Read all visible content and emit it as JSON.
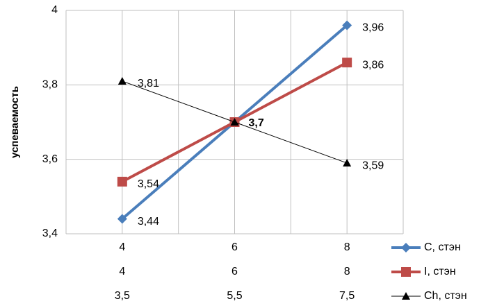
{
  "chart_data": {
    "type": "line",
    "y_label": "успеваемость",
    "categories": [
      [
        "4",
        "4",
        "3,5"
      ],
      [
        "6",
        "6",
        "5,5"
      ],
      [
        "8",
        "8",
        "7,5"
      ]
    ],
    "ylim": [
      3.4,
      4
    ],
    "yticks": [
      {
        "value": 3.4,
        "label": "3,4"
      },
      {
        "value": 3.6,
        "label": "3,6"
      },
      {
        "value": 3.8,
        "label": "3,8"
      },
      4
    ],
    "grid": true,
    "legend": "bottom-right",
    "series": [
      {
        "name": "C, стэн",
        "color": "#4a7ebb",
        "marker": "diamond",
        "line_width": 4,
        "values": [
          3.44,
          3.7,
          3.96
        ],
        "value_labels": [
          "3,44",
          null,
          "3,96"
        ]
      },
      {
        "name": "I, стэн",
        "color": "#be4b48",
        "marker": "square",
        "line_width": 4,
        "values": [
          3.54,
          3.7,
          3.86
        ],
        "value_labels": [
          "3,54",
          null,
          "3,86"
        ]
      },
      {
        "name": "Ch, стэн",
        "color": "#000000",
        "marker": "triangle",
        "line_width": 1,
        "values": [
          3.81,
          3.7,
          3.59
        ],
        "value_labels": [
          "3,81",
          "3,7",
          "3,59"
        ]
      }
    ]
  }
}
